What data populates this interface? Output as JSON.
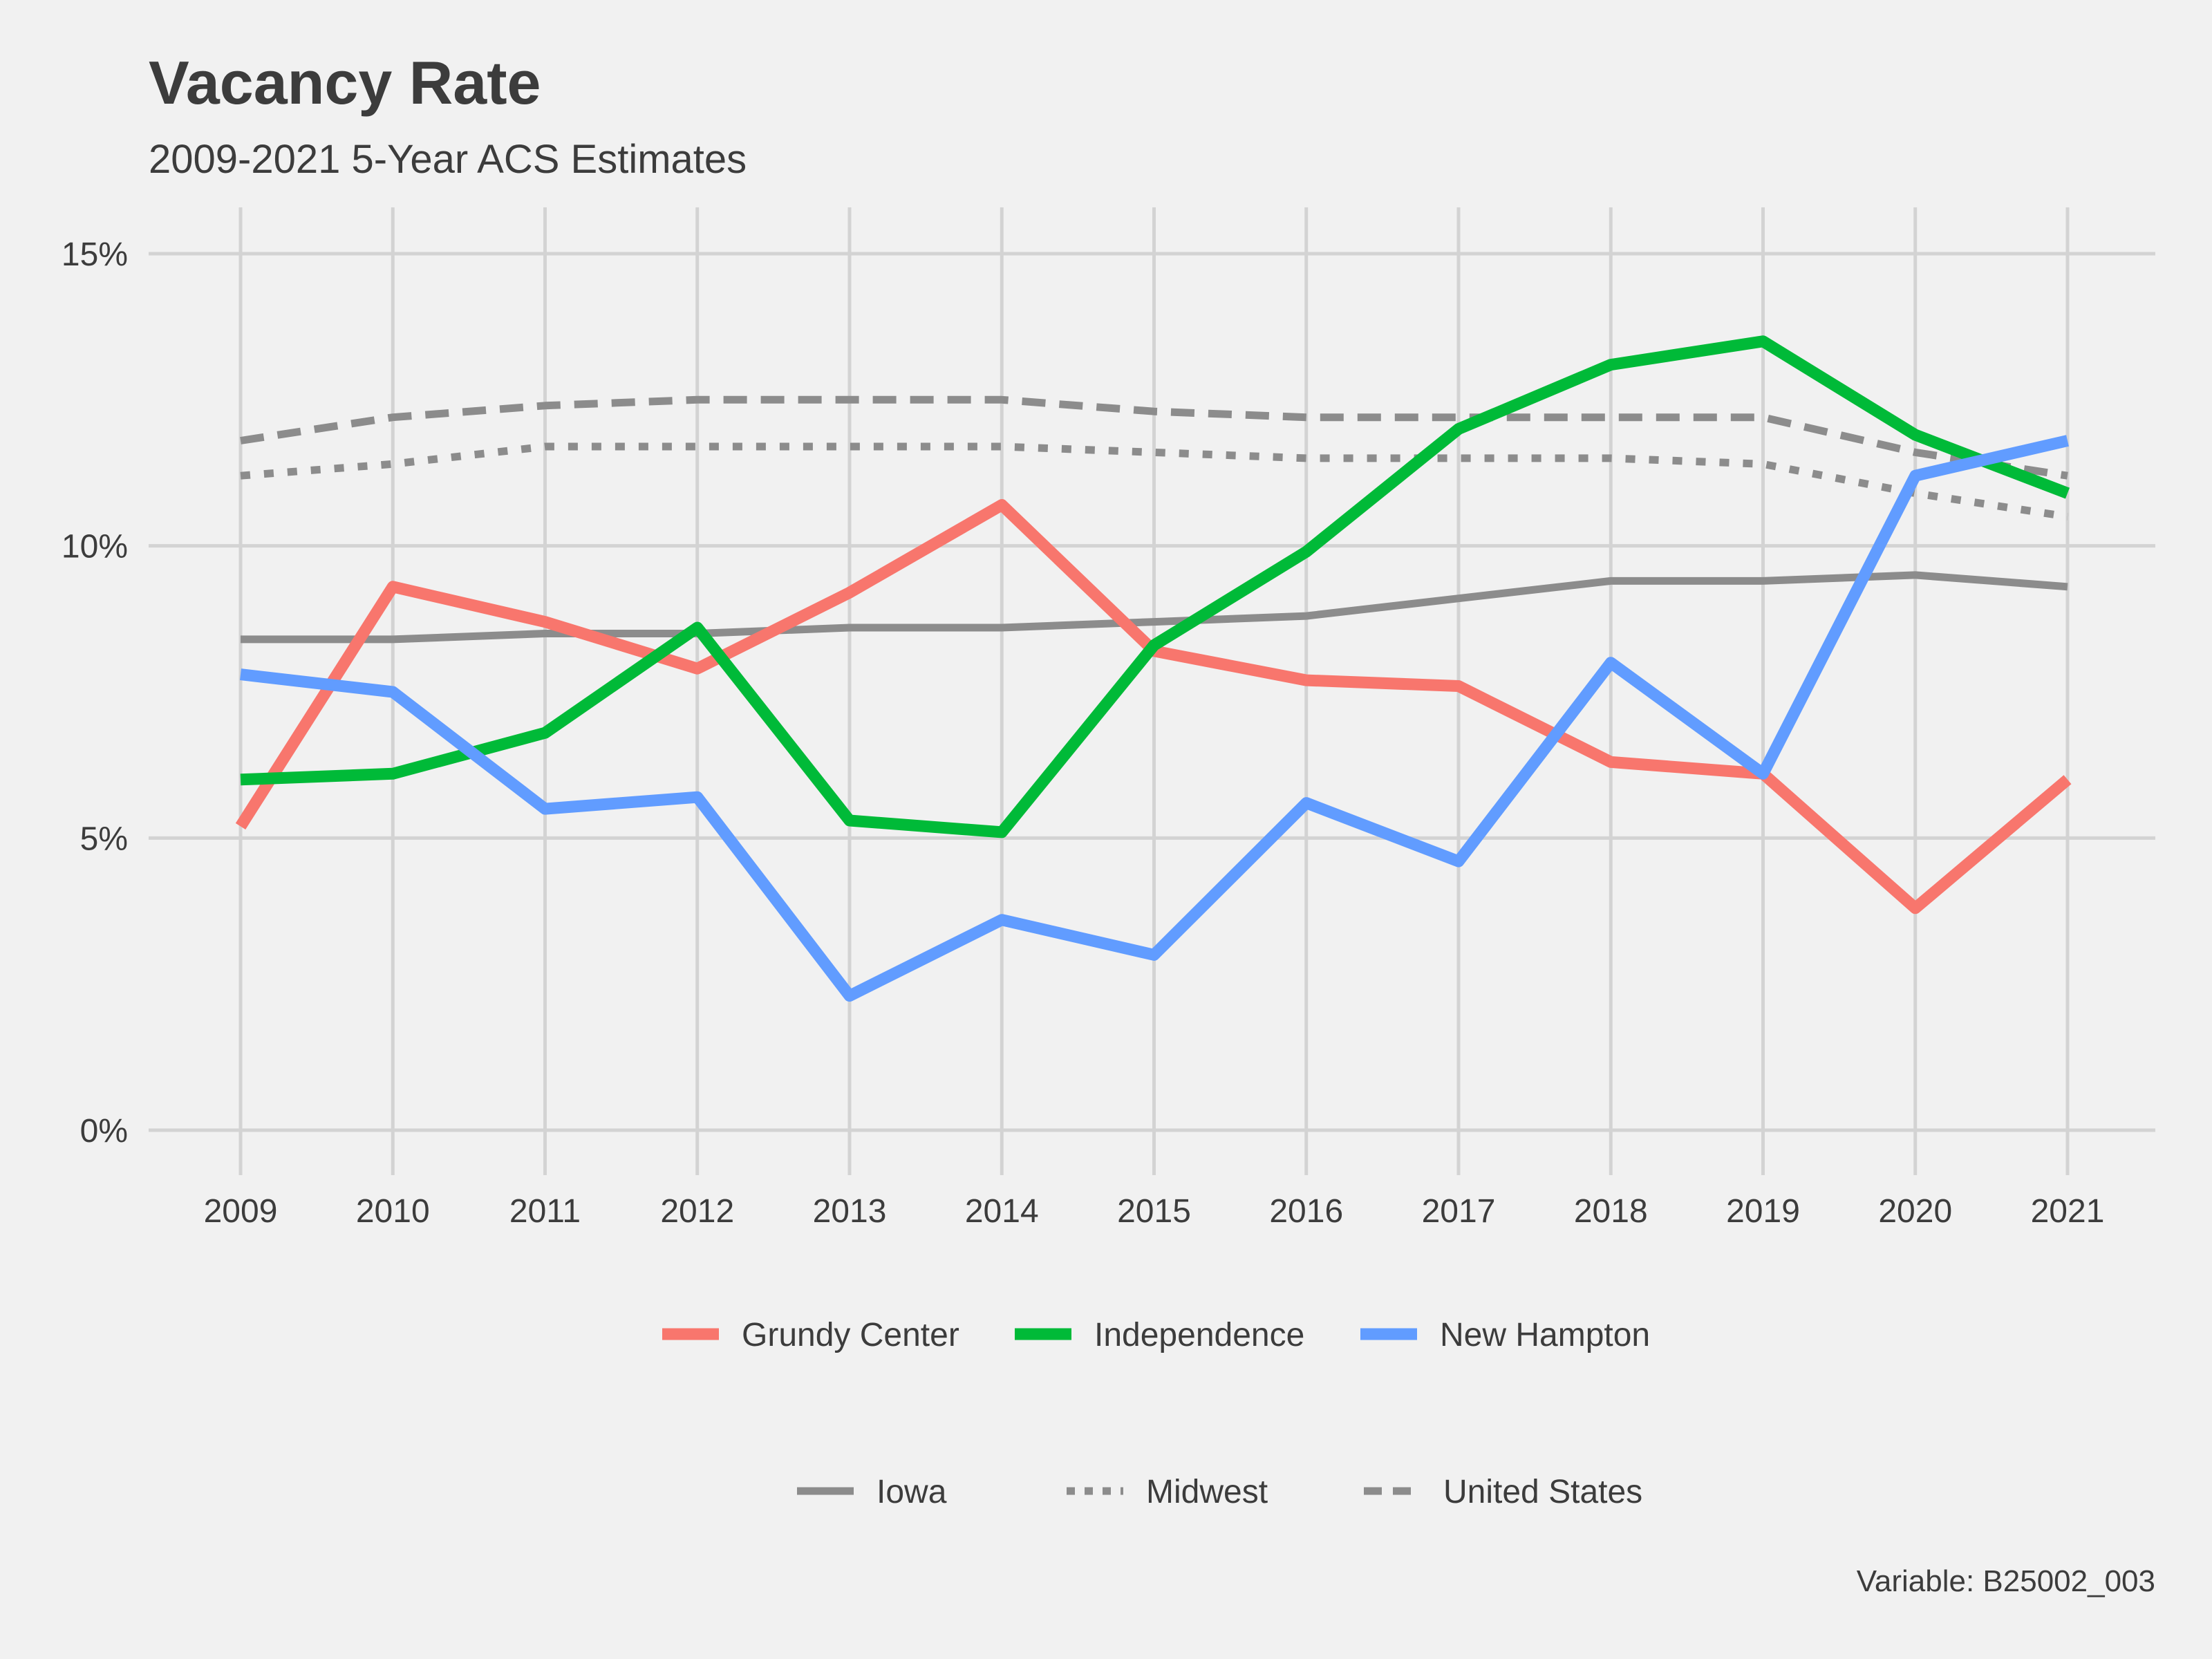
{
  "chart_data": {
    "type": "line",
    "title": "Vacancy Rate",
    "subtitle": "2009-2021 5-Year ACS Estimates",
    "caption": "Variable: B25002_003",
    "x": [
      "2009",
      "2010",
      "2011",
      "2012",
      "2013",
      "2014",
      "2015",
      "2016",
      "2017",
      "2018",
      "2019",
      "2020",
      "2021"
    ],
    "ylim": [
      0,
      0.16
    ],
    "yticks": [
      0,
      0.05,
      0.1,
      0.15
    ],
    "ytick_labels": [
      "0%",
      "5%",
      "10%",
      "15%"
    ],
    "grid": true,
    "series": [
      {
        "name": "Grundy Center",
        "group": "place",
        "color": "#f8766d",
        "dash": "solid",
        "values": [
          0.052,
          0.093,
          0.087,
          0.079,
          0.092,
          0.107,
          0.082,
          0.077,
          0.076,
          0.063,
          0.061,
          0.038,
          0.06
        ]
      },
      {
        "name": "Independence",
        "group": "place",
        "color": "#00ba38",
        "dash": "solid",
        "values": [
          0.06,
          0.061,
          0.068,
          0.086,
          0.053,
          0.051,
          0.083,
          0.099,
          0.12,
          0.131,
          0.135,
          0.119,
          0.109
        ]
      },
      {
        "name": "New Hampton",
        "group": "place",
        "color": "#619cff",
        "dash": "solid",
        "values": [
          0.078,
          0.075,
          0.055,
          0.057,
          0.023,
          0.036,
          0.03,
          0.056,
          0.046,
          0.08,
          0.061,
          0.112,
          0.118
        ]
      },
      {
        "name": "Iowa",
        "group": "reference",
        "color": "#8c8c8c",
        "dash": "solid",
        "values": [
          0.084,
          0.084,
          0.085,
          0.085,
          0.086,
          0.086,
          0.087,
          0.088,
          0.091,
          0.094,
          0.094,
          0.095,
          0.093
        ]
      },
      {
        "name": "Midwest",
        "group": "reference",
        "color": "#8c8c8c",
        "dash": "dotted",
        "values": [
          0.112,
          0.114,
          0.117,
          0.117,
          0.117,
          0.117,
          0.116,
          0.115,
          0.115,
          0.115,
          0.114,
          0.109,
          0.105
        ]
      },
      {
        "name": "United States",
        "group": "reference",
        "color": "#8c8c8c",
        "dash": "dashed",
        "values": [
          0.118,
          0.122,
          0.124,
          0.125,
          0.125,
          0.125,
          0.123,
          0.122,
          0.122,
          0.122,
          0.122,
          0.116,
          0.112
        ]
      }
    ],
    "legend": {
      "place_entries": [
        "Grundy Center",
        "Independence",
        "New Hampton"
      ],
      "reference_entries": [
        "Iowa",
        "Midwest",
        "United States"
      ],
      "placement": "bottom"
    }
  }
}
